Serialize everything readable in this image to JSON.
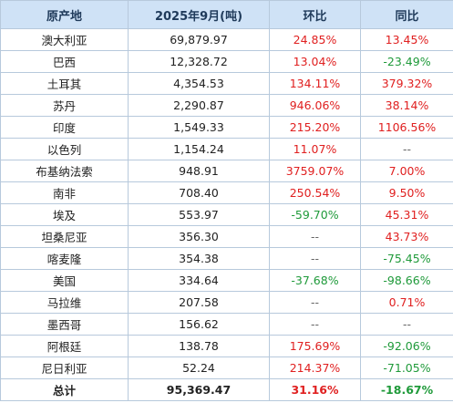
{
  "headers": [
    "原产地",
    "2025年9月(吨)",
    "环比",
    "同比"
  ],
  "colors": {
    "positive": "#e02020",
    "negative": "#1f9a3a",
    "neutral": "#666666",
    "header_bg": "#cfe2f6"
  },
  "rows": [
    {
      "origin": "澳大利亚",
      "quantity": "69,879.97",
      "mom": "24.85%",
      "yoy": "13.45%"
    },
    {
      "origin": "巴西",
      "quantity": "12,328.72",
      "mom": "13.04%",
      "yoy": "-23.49%"
    },
    {
      "origin": "土耳其",
      "quantity": "4,354.53",
      "mom": "134.11%",
      "yoy": "379.32%"
    },
    {
      "origin": "苏丹",
      "quantity": "2,290.87",
      "mom": "946.06%",
      "yoy": "38.14%"
    },
    {
      "origin": "印度",
      "quantity": "1,549.33",
      "mom": "215.20%",
      "yoy": "1106.56%"
    },
    {
      "origin": "以色列",
      "quantity": "1,154.24",
      "mom": "11.07%",
      "yoy": "--"
    },
    {
      "origin": "布基纳法索",
      "quantity": "948.91",
      "mom": "3759.07%",
      "yoy": "7.00%"
    },
    {
      "origin": "南非",
      "quantity": "708.40",
      "mom": "250.54%",
      "yoy": "9.50%"
    },
    {
      "origin": "埃及",
      "quantity": "553.97",
      "mom": "-59.70%",
      "yoy": "45.31%"
    },
    {
      "origin": "坦桑尼亚",
      "quantity": "356.30",
      "mom": "--",
      "yoy": "43.73%"
    },
    {
      "origin": "喀麦隆",
      "quantity": "354.38",
      "mom": "--",
      "yoy": "-75.45%"
    },
    {
      "origin": "美国",
      "quantity": "334.64",
      "mom": "-37.68%",
      "yoy": "-98.66%"
    },
    {
      "origin": "马拉维",
      "quantity": "207.58",
      "mom": "--",
      "yoy": "0.71%"
    },
    {
      "origin": "墨西哥",
      "quantity": "156.62",
      "mom": "--",
      "yoy": "--"
    },
    {
      "origin": "阿根廷",
      "quantity": "138.78",
      "mom": "175.69%",
      "yoy": "-92.06%"
    },
    {
      "origin": "尼日利亚",
      "quantity": "52.24",
      "mom": "214.37%",
      "yoy": "-71.05%"
    }
  ],
  "total": {
    "origin": "总计",
    "quantity": "95,369.47",
    "mom": "31.16%",
    "yoy": "-18.67%"
  }
}
